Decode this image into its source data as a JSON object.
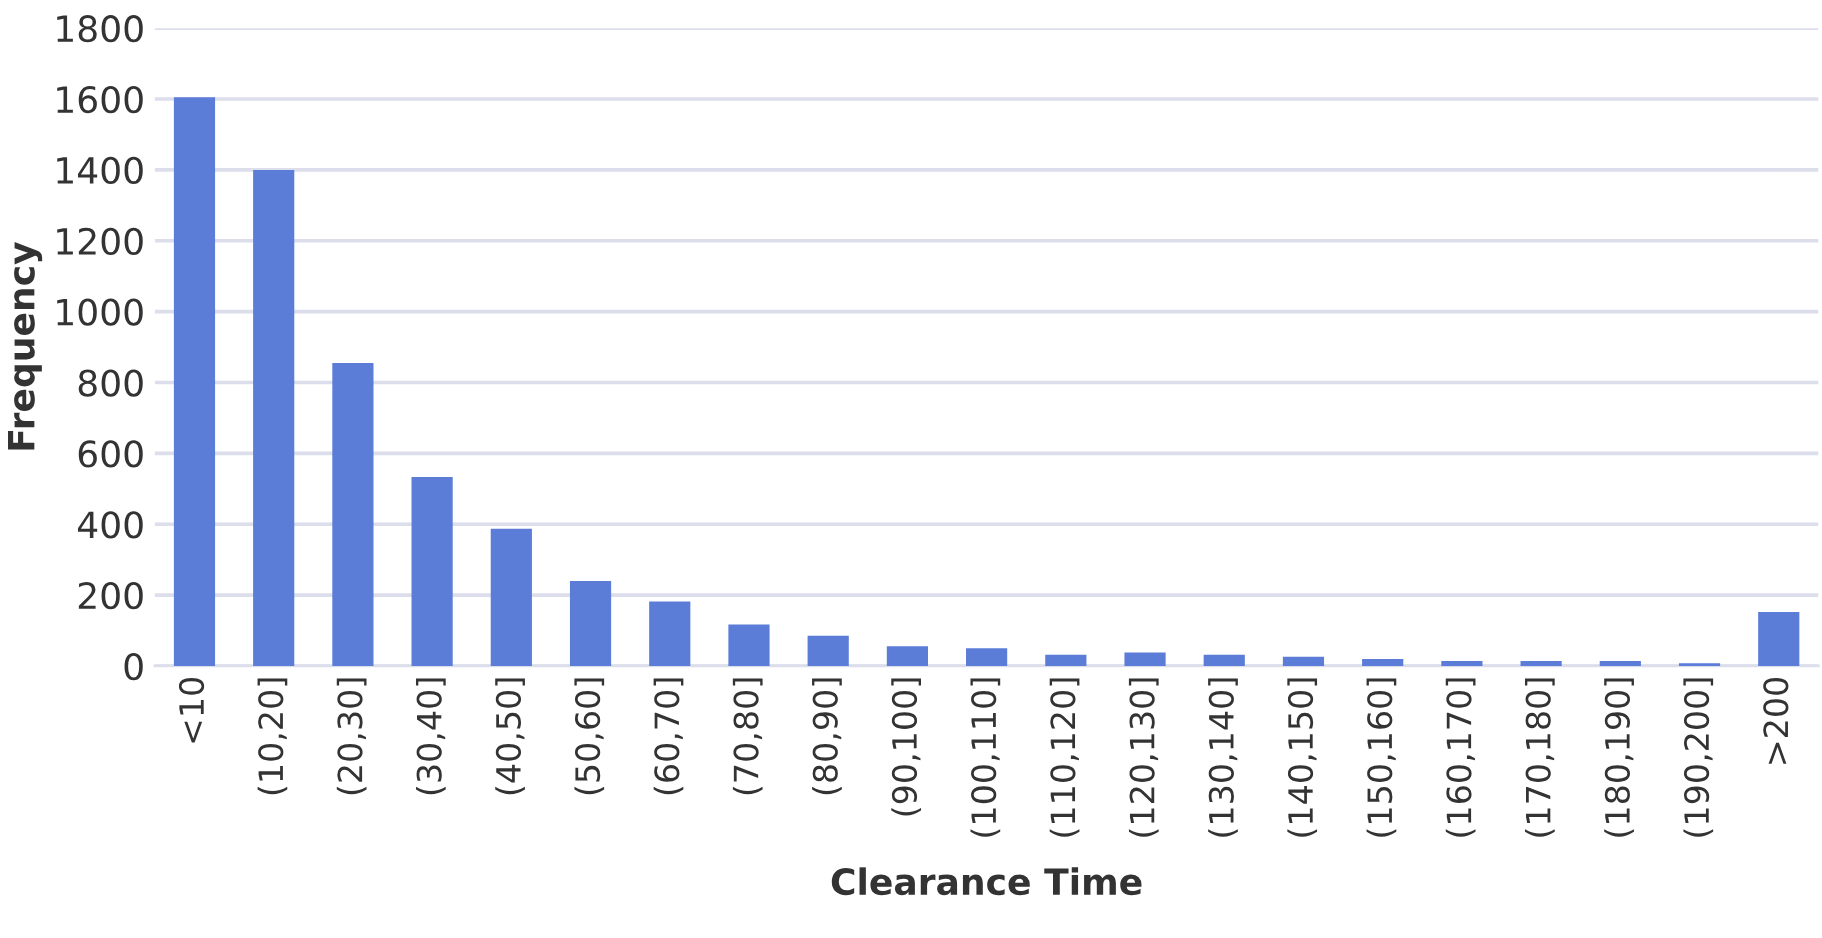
{
  "chart_data": {
    "type": "bar",
    "xlabel": "Clearance Time",
    "ylabel": "Frequency",
    "categories": [
      "<10",
      "(10,20]",
      "(20,30]",
      "(30,40]",
      "(40,50]",
      "(50,60]",
      "(60,70]",
      "(70,80]",
      "(80,90]",
      "(90,100]",
      "(100,110]",
      "(110,120]",
      "(120,130]",
      "(130,140]",
      "(140,150]",
      "(150,160]",
      "(160,170]",
      "(170,180]",
      "(180,190]",
      "(190,200]",
      ">200"
    ],
    "values": [
      1605,
      1400,
      855,
      533,
      387,
      240,
      182,
      117,
      85,
      56,
      50,
      32,
      38,
      32,
      26,
      20,
      14,
      14,
      14,
      8,
      152
    ],
    "color": "#5b7dd8",
    "ylim": [
      0,
      1800
    ],
    "yticks": [
      0,
      200,
      400,
      600,
      800,
      1000,
      1200,
      1400,
      1600,
      1800
    ],
    "grid": "y"
  }
}
